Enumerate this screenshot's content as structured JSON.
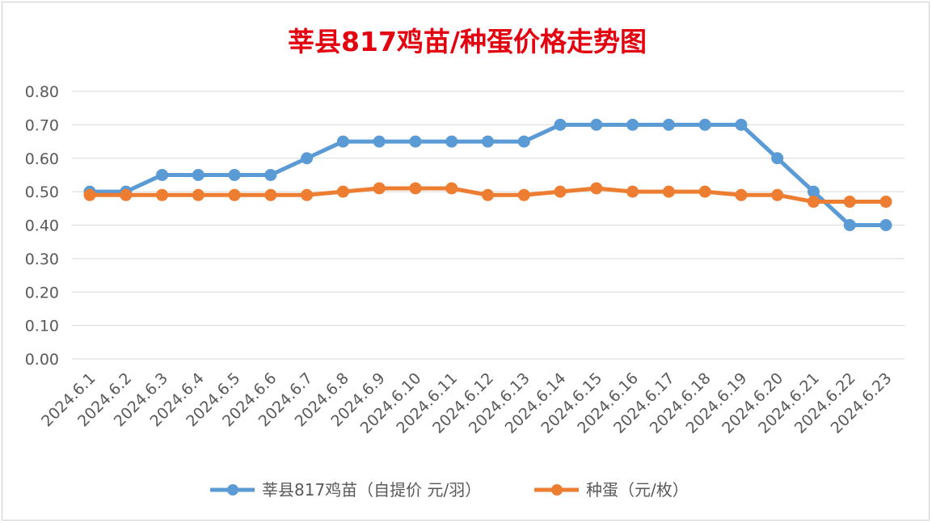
{
  "chart_data": {
    "type": "line",
    "title": "莘县817鸡苗/种蛋价格走势图",
    "xlabel": "",
    "ylabel": "",
    "ylim": [
      0,
      0.8
    ],
    "yticks": [
      "0.00",
      "0.10",
      "0.20",
      "0.30",
      "0.40",
      "0.50",
      "0.60",
      "0.70",
      "0.80"
    ],
    "grid": true,
    "legend_position": "bottom",
    "categories": [
      "2024.6.1",
      "2024.6.2",
      "2024.6.3",
      "2024.6.4",
      "2024.6.5",
      "2024.6.6",
      "2024.6.7",
      "2024.6.8",
      "2024.6.9",
      "2024.6.10",
      "2024.6.11",
      "2024.6.12",
      "2024.6.13",
      "2024.6.14",
      "2024.6.15",
      "2024.6.16",
      "2024.6.17",
      "2024.6.18",
      "2024.6.19",
      "2024.6.20",
      "2024.6.21",
      "2024.6.22",
      "2024.6.23"
    ],
    "series": [
      {
        "name": "莘县817鸡苗（自提价 元/羽）",
        "color": "#5b9bd5",
        "values": [
          0.5,
          0.5,
          0.55,
          0.55,
          0.55,
          0.55,
          0.6,
          0.65,
          0.65,
          0.65,
          0.65,
          0.65,
          0.65,
          0.7,
          0.7,
          0.7,
          0.7,
          0.7,
          0.7,
          0.6,
          0.5,
          0.4,
          0.4
        ]
      },
      {
        "name": "种蛋（元/枚）",
        "color": "#ed7d31",
        "values": [
          0.49,
          0.49,
          0.49,
          0.49,
          0.49,
          0.49,
          0.49,
          0.5,
          0.51,
          0.51,
          0.51,
          0.49,
          0.49,
          0.5,
          0.51,
          0.5,
          0.5,
          0.5,
          0.49,
          0.49,
          0.47,
          0.47,
          0.47
        ]
      }
    ]
  }
}
